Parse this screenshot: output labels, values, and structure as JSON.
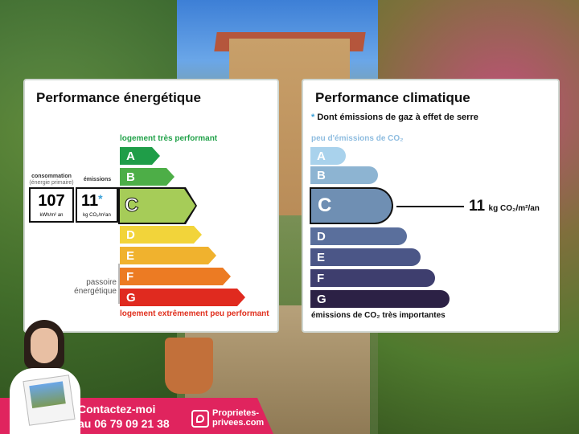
{
  "energy": {
    "title": "Performance énergétique",
    "top_label": "logement très performant",
    "bottom_label": "logement extrêmement peu performant",
    "consumption_label": "consommation",
    "consumption_sub": "(énergie primaire)",
    "emissions_label": "émissions",
    "consumption_value": "107",
    "consumption_unit": "kWh/m² an",
    "emissions_value": "11",
    "emissions_star": "*",
    "emissions_unit": "kg CO₂/m²an",
    "passoire_line1": "passoire",
    "passoire_line2": "énergétique",
    "classes": [
      "A",
      "B",
      "C",
      "D",
      "E",
      "F",
      "G"
    ],
    "selected_class": "C",
    "colors": [
      "#1f9d48",
      "#4dae47",
      "#a6cc58",
      "#f2d43a",
      "#f0b22e",
      "#ec7b23",
      "#e02a1f"
    ]
  },
  "climate": {
    "title": "Performance climatique",
    "star": "*",
    "subtitle": "Dont émissions de gaz à effet de serre",
    "top_label": "peu d'émissions de CO₂",
    "bottom_label": "émissions de CO₂ très importantes",
    "classes": [
      "A",
      "B",
      "C",
      "D",
      "E",
      "F",
      "G"
    ],
    "selected_class": "C",
    "value": "11",
    "unit": "kg CO₂/m²/an",
    "colors": [
      "#a9d2ec",
      "#8db4d2",
      "#6f8fb3",
      "#5a6f9c",
      "#4b5687",
      "#3e3e6e",
      "#2c2145"
    ]
  },
  "contact": {
    "line1": "Contactez-moi",
    "line2": "au 06 79 09 21 38",
    "brand_line1": "Proprietes-",
    "brand_line2": "privees.com"
  }
}
